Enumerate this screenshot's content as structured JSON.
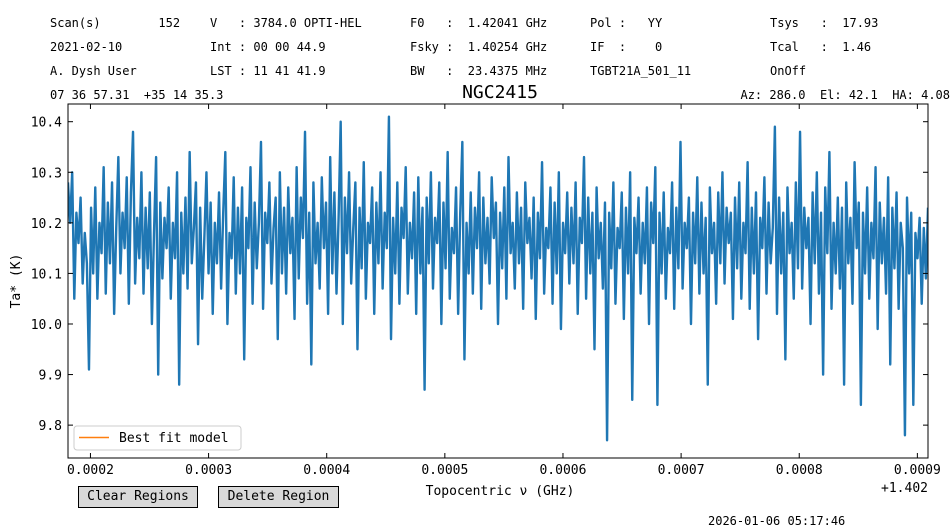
{
  "header": {
    "col1": [
      "Scan(s)        152",
      "2021-02-10",
      "A. Dysh User"
    ],
    "col2": [
      "V   : 3784.0 OPTI-HEL",
      "Int : 00 00 44.9",
      "LST : 11 41 41.9"
    ],
    "col3": [
      "F0   :  1.42041 GHz",
      "Fsky :  1.40254 GHz",
      "BW   :  23.4375 MHz"
    ],
    "col4": [
      "Pol :   YY",
      "IF  :    0",
      "TGBT21A_501_11"
    ],
    "col5": [
      "Tsys   :  17.93",
      "Tcal   :  1.46",
      "OnOff"
    ],
    "coords": "07 36 57.31  +35 14 35.3",
    "azel": "Az: 286.0  El: 42.1  HA: 4.08"
  },
  "buttons": {
    "clear": "Clear Regions",
    "delete": "Delete Region"
  },
  "timestamp": "2026-01-06 05:17:46",
  "colors": {
    "series": "#1f77b4",
    "fit": "#ff7f0e"
  },
  "chart_data": {
    "type": "line",
    "title": "NGC2415",
    "xlabel": "Topocentric ν (GHz)",
    "ylabel": "Ta* (K)",
    "x_offset_label": "+1.402",
    "xlim": [
      0.000181,
      0.000909
    ],
    "ylim": [
      9.735,
      10.435
    ],
    "xticks": [
      0.0002,
      0.0003,
      0.0004,
      0.0005,
      0.0006,
      0.0007,
      0.0008,
      0.0009
    ],
    "xtick_labels": [
      "0.0002",
      "0.0003",
      "0.0004",
      "0.0005",
      "0.0006",
      "0.0007",
      "0.0008",
      "0.0009"
    ],
    "yticks": [
      9.8,
      9.9,
      10.0,
      10.1,
      10.2,
      10.3,
      10.4
    ],
    "ytick_labels": [
      "9.8",
      "9.9",
      "10.0",
      "10.1",
      "10.2",
      "10.3",
      "10.4"
    ],
    "legend": {
      "placement": "lower-left",
      "entries": [
        "Best fit model"
      ]
    },
    "series": [
      {
        "x_start": 0.000181,
        "x_end": 0.000909,
        "y": [
          10.28,
          10.2,
          10.3,
          10.05,
          10.22,
          10.16,
          10.25,
          10.08,
          10.18,
          10.12,
          9.91,
          10.23,
          10.1,
          10.27,
          10.05,
          10.2,
          10.14,
          10.31,
          10.06,
          10.24,
          10.12,
          10.28,
          10.02,
          10.19,
          10.33,
          10.1,
          10.22,
          10.15,
          10.29,
          10.04,
          10.26,
          10.38,
          10.08,
          10.21,
          10.13,
          10.3,
          10.06,
          10.23,
          10.11,
          10.26,
          10.0,
          10.18,
          10.33,
          9.9,
          10.24,
          10.09,
          10.21,
          10.15,
          10.27,
          10.05,
          10.2,
          10.13,
          10.3,
          9.88,
          10.22,
          10.1,
          10.25,
          10.07,
          10.34,
          10.12,
          10.19,
          10.28,
          9.96,
          10.23,
          10.05,
          10.17,
          10.3,
          10.1,
          10.24,
          10.02,
          10.2,
          10.12,
          10.26,
          10.07,
          10.22,
          10.34,
          10.0,
          10.18,
          10.13,
          10.29,
          10.06,
          10.23,
          10.1,
          10.27,
          9.93,
          10.21,
          10.15,
          10.31,
          10.04,
          10.24,
          10.11,
          10.2,
          10.36,
          10.03,
          10.22,
          10.16,
          10.28,
          10.08,
          10.19,
          10.25,
          9.97,
          10.3,
          10.1,
          10.23,
          10.06,
          10.27,
          10.14,
          10.21,
          10.01,
          10.31,
          10.09,
          10.25,
          10.17,
          10.38,
          10.04,
          10.22,
          9.92,
          10.28,
          10.12,
          10.2,
          10.07,
          10.29,
          10.15,
          10.24,
          10.02,
          10.33,
          10.1,
          10.26,
          10.06,
          10.21,
          10.4,
          10.0,
          10.25,
          10.14,
          10.3,
          10.08,
          10.19,
          10.28,
          9.95,
          10.23,
          10.11,
          10.32,
          10.05,
          10.2,
          10.16,
          10.27,
          10.02,
          10.24,
          10.12,
          10.3,
          10.07,
          10.22,
          10.15,
          10.41,
          9.97,
          10.21,
          10.1,
          10.28,
          10.04,
          10.23,
          10.17,
          10.31,
          10.06,
          10.2,
          10.13,
          10.26,
          10.02,
          10.29,
          10.1,
          10.23,
          9.87,
          10.25,
          10.12,
          10.3,
          10.07,
          10.21,
          10.16,
          10.28,
          10.0,
          10.24,
          10.11,
          10.34,
          10.05,
          10.19,
          10.14,
          10.27,
          10.02,
          10.22,
          10.36,
          9.93,
          10.2,
          10.1,
          10.26,
          10.06,
          10.23,
          10.15,
          10.3,
          10.03,
          10.25,
          10.12,
          10.21,
          10.08,
          10.29,
          10.17,
          10.24,
          10.0,
          10.22,
          10.11,
          10.27,
          10.05,
          10.33,
          10.14,
          10.2,
          10.07,
          10.26,
          10.12,
          10.23,
          10.03,
          10.28,
          10.16,
          10.21,
          10.09,
          10.25,
          10.01,
          10.22,
          10.13,
          10.32,
          10.06,
          10.19,
          10.15,
          10.27,
          10.04,
          10.24,
          10.1,
          10.3,
          9.99,
          10.2,
          10.14,
          10.26,
          10.08,
          10.23,
          10.12,
          10.28,
          10.02,
          10.21,
          10.16,
          10.33,
          10.05,
          10.25,
          10.1,
          10.22,
          9.95,
          10.27,
          10.13,
          10.2,
          10.07,
          10.24,
          9.77,
          10.22,
          10.11,
          10.28,
          10.04,
          10.19,
          10.15,
          10.26,
          10.01,
          10.23,
          10.1,
          10.3,
          9.85,
          10.21,
          10.14,
          10.25,
          10.06,
          10.2,
          10.12,
          10.27,
          10.0,
          10.24,
          10.16,
          10.31,
          9.84,
          10.22,
          10.1,
          10.26,
          10.05,
          10.19,
          10.14,
          10.28,
          10.03,
          10.23,
          10.11,
          10.36,
          10.07,
          10.2,
          10.15,
          10.25,
          10.0,
          10.22,
          10.12,
          10.29,
          10.06,
          10.24,
          10.1,
          10.21,
          9.88,
          10.27,
          10.14,
          10.2,
          10.04,
          10.26,
          10.12,
          10.3,
          10.08,
          10.23,
          10.16,
          10.22,
          10.01,
          10.25,
          10.11,
          10.28,
          10.05,
          10.2,
          10.14,
          10.32,
          10.03,
          10.23,
          10.1,
          10.26,
          9.97,
          10.21,
          10.15,
          10.29,
          10.06,
          10.24,
          10.12,
          10.19,
          10.39,
          10.02,
          10.25,
          10.1,
          10.22,
          9.93,
          10.27,
          10.14,
          10.2,
          10.05,
          10.28,
          10.11,
          10.38,
          10.07,
          10.23,
          10.15,
          10.21,
          10.0,
          10.26,
          10.12,
          10.3,
          10.06,
          10.22,
          9.9,
          10.27,
          10.14,
          10.34,
          10.03,
          10.2,
          10.1,
          10.25,
          10.07,
          10.23,
          9.88,
          10.28,
          10.12,
          10.21,
          10.04,
          10.32,
          10.15,
          10.24,
          9.84,
          10.22,
          10.1,
          10.27,
          10.05,
          10.2,
          10.13,
          10.31,
          9.99,
          10.24,
          10.12,
          10.21,
          10.06,
          10.29,
          9.92,
          10.23,
          10.11,
          10.26,
          10.03,
          10.2,
          10.15,
          9.78,
          10.25,
          10.1,
          10.22,
          9.84,
          10.18,
          10.13,
          10.21,
          10.04,
          10.19,
          10.09,
          10.23
        ]
      }
    ]
  }
}
